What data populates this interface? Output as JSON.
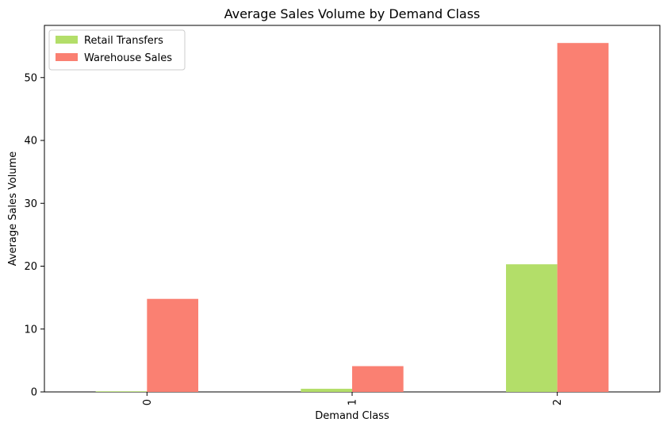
{
  "chart_data": {
    "type": "bar",
    "title": "Average Sales Volume by Demand Class",
    "xlabel": "Demand Class",
    "ylabel": "Average Sales Volume",
    "categories": [
      "0",
      "1",
      "2"
    ],
    "series": [
      {
        "name": "Retail Transfers",
        "values": [
          0.1,
          0.5,
          20.3
        ],
        "color": "#b3de69"
      },
      {
        "name": "Warehouse Sales",
        "values": [
          14.8,
          4.1,
          55.5
        ],
        "color": "#fa8072"
      }
    ],
    "ylim": [
      0,
      58.3
    ],
    "yticks": [
      0,
      10,
      20,
      30,
      40,
      50
    ],
    "grid": false,
    "legend_position": "top-left",
    "xtick_rotation": 90
  }
}
